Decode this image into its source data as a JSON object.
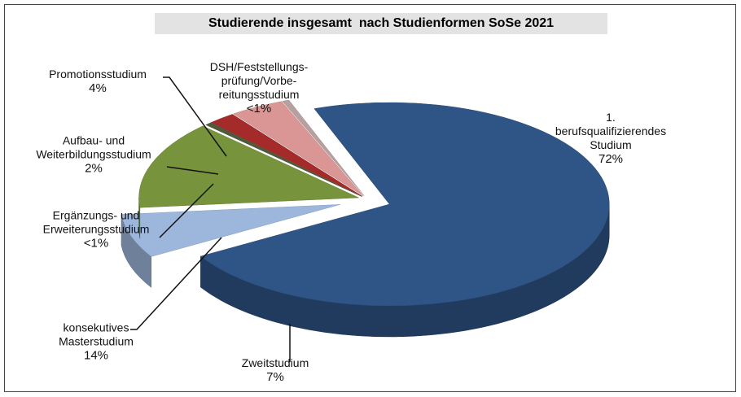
{
  "chart_data": {
    "type": "pie",
    "title": "Studierende insgesamt  nach Studienformen SoSe 2021",
    "categories": [
      "1.\nberufsqualifizierendes\nStudium",
      "Zweitstudium",
      "konsekutives\nMasterstudium",
      "Ergänzungs- und\nErweiterungsstudium",
      "Aufbau- und\nWeiterbildungsstudium",
      "Promotionsstudium",
      "DSH/Feststellungs-\nprüfung/Vorbe-\nreitungsstudium"
    ],
    "values": [
      72,
      7,
      14,
      0.5,
      2,
      4,
      0.5
    ],
    "value_labels": [
      "72%",
      "7%",
      "14%",
      "<1%",
      "2%",
      "4%",
      "<1%"
    ],
    "colors": [
      "#2f5586",
      "#9db7dc",
      "#77933c",
      "#4f5a3a",
      "#a52a2a",
      "#d99694",
      "#b9a0a0"
    ]
  }
}
